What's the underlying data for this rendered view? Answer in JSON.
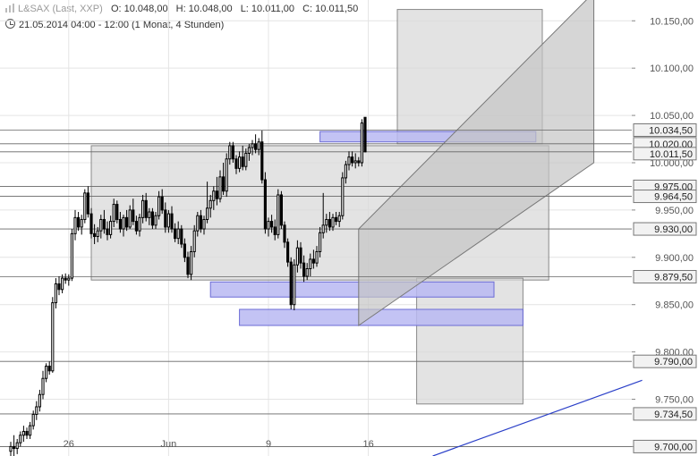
{
  "header": {
    "symbol": "L&SAX (Last, XXP)",
    "open": "O: 10.048,00",
    "high": "H: 10.048,00",
    "low": "L: 10.011,00",
    "close": "C: 10.011,50",
    "range": "21.05.2014 04:00 - 12:00 (1 Monat, 4 Stunden)"
  },
  "colors": {
    "grid": "#e4e4e4",
    "candle": "#000000",
    "zone_fill": "#d9d9d9",
    "channel_fill": "#c4c4c4",
    "blue_zone_fill": "#b8b8f2",
    "blue_zone_stroke": "#6b6bd6",
    "trendline": "#2a3fc8",
    "level_line": "#666666"
  },
  "chart_data": {
    "type": "candlestick",
    "interval": "4 Stunden",
    "y_axis": {
      "side": "right",
      "range": [
        9690,
        10172
      ],
      "ticks": [
        10150,
        10100,
        10050,
        10000,
        9950,
        9900,
        9850,
        9800,
        9750,
        9700
      ],
      "tick_labels": [
        "10.150,00",
        "10.100,00",
        "10.050,00",
        "10.000,00",
        "9.950,00",
        "9.900,00",
        "9.850,00",
        "9.800,00",
        "9.750,00",
        "9.700,00"
      ]
    },
    "x_axis": {
      "range": [
        0,
        155
      ],
      "ticks": [
        {
          "x": 18,
          "label": "26"
        },
        {
          "x": 49,
          "label": "Jun"
        },
        {
          "x": 80,
          "label": "9"
        },
        {
          "x": 111,
          "label": "16"
        }
      ]
    },
    "grid": true,
    "price_levels": [
      {
        "value": 10034.5,
        "label": "10.034,50"
      },
      {
        "value": 10020,
        "label": "10.020,00"
      },
      {
        "value": 10011.5,
        "label": "10.011,50"
      },
      {
        "value": 9975,
        "label": "9.975,00"
      },
      {
        "value": 9964.5,
        "label": "9.964,50"
      },
      {
        "value": 9930,
        "label": "9.930,00"
      },
      {
        "value": 9879.5,
        "label": "9.879,50"
      },
      {
        "value": 9790,
        "label": "9.790,00"
      },
      {
        "value": 9734.5,
        "label": "9.734,50"
      },
      {
        "value": 9700,
        "label": "9.700,00"
      }
    ],
    "zones": [
      {
        "x0": 25,
        "x1": 167,
        "y0": 9876,
        "y1": 10018,
        "kind": "range"
      },
      {
        "x0": 120,
        "x1": 165,
        "y0": 10020,
        "y1": 10162,
        "kind": "range"
      },
      {
        "x0": 126,
        "x1": 159,
        "y0": 9745,
        "y1": 9878,
        "kind": "range"
      },
      {
        "x0": 96,
        "x1": 163,
        "y0": 10022,
        "y1": 10033,
        "kind": "demand"
      },
      {
        "x0": 62,
        "x1": 150,
        "y0": 9858,
        "y1": 9874,
        "kind": "demand"
      },
      {
        "x0": 71,
        "x1": 159,
        "y0": 9828,
        "y1": 9845,
        "kind": "demand"
      }
    ],
    "channel": {
      "x0": 108,
      "x1": 181,
      "lower": [
        9828,
        10000
      ],
      "upper": [
        9930,
        10180
      ]
    },
    "trendline": {
      "x0": 131,
      "y0": 9690,
      "x1": 196,
      "y1": 9770
    },
    "candles": [
      {
        "o": 9695,
        "h": 9705,
        "l": 9690,
        "c": 9700
      },
      {
        "o": 9700,
        "h": 9712,
        "l": 9690,
        "c": 9698
      },
      {
        "o": 9698,
        "h": 9708,
        "l": 9692,
        "c": 9704
      },
      {
        "o": 9704,
        "h": 9716,
        "l": 9700,
        "c": 9712
      },
      {
        "o": 9712,
        "h": 9722,
        "l": 9705,
        "c": 9716
      },
      {
        "o": 9716,
        "h": 9720,
        "l": 9708,
        "c": 9712
      },
      {
        "o": 9712,
        "h": 9726,
        "l": 9708,
        "c": 9722
      },
      {
        "o": 9722,
        "h": 9738,
        "l": 9718,
        "c": 9734
      },
      {
        "o": 9734,
        "h": 9748,
        "l": 9728,
        "c": 9742
      },
      {
        "o": 9742,
        "h": 9760,
        "l": 9737,
        "c": 9755
      },
      {
        "o": 9755,
        "h": 9780,
        "l": 9750,
        "c": 9772
      },
      {
        "o": 9772,
        "h": 9788,
        "l": 9768,
        "c": 9785
      },
      {
        "o": 9785,
        "h": 9790,
        "l": 9776,
        "c": 9780
      },
      {
        "o": 9780,
        "h": 9858,
        "l": 9778,
        "c": 9852
      },
      {
        "o": 9852,
        "h": 9878,
        "l": 9846,
        "c": 9872
      },
      {
        "o": 9872,
        "h": 9880,
        "l": 9860,
        "c": 9866
      },
      {
        "o": 9866,
        "h": 9882,
        "l": 9862,
        "c": 9878
      },
      {
        "o": 9878,
        "h": 9883,
        "l": 9872,
        "c": 9876
      },
      {
        "o": 9876,
        "h": 9882,
        "l": 9870,
        "c": 9878
      },
      {
        "o": 9878,
        "h": 9930,
        "l": 9875,
        "c": 9925
      },
      {
        "o": 9925,
        "h": 9950,
        "l": 9918,
        "c": 9942
      },
      {
        "o": 9942,
        "h": 9948,
        "l": 9928,
        "c": 9932
      },
      {
        "o": 9932,
        "h": 9945,
        "l": 9924,
        "c": 9940
      },
      {
        "o": 9940,
        "h": 9972,
        "l": 9936,
        "c": 9968
      },
      {
        "o": 9968,
        "h": 9975,
        "l": 9942,
        "c": 9946
      },
      {
        "o": 9946,
        "h": 9952,
        "l": 9920,
        "c": 9925
      },
      {
        "o": 9925,
        "h": 9935,
        "l": 9914,
        "c": 9922
      },
      {
        "o": 9922,
        "h": 9932,
        "l": 9916,
        "c": 9928
      },
      {
        "o": 9928,
        "h": 9945,
        "l": 9920,
        "c": 9940
      },
      {
        "o": 9940,
        "h": 9950,
        "l": 9925,
        "c": 9930
      },
      {
        "o": 9930,
        "h": 9938,
        "l": 9918,
        "c": 9924
      },
      {
        "o": 9924,
        "h": 9944,
        "l": 9920,
        "c": 9938
      },
      {
        "o": 9938,
        "h": 9962,
        "l": 9932,
        "c": 9956
      },
      {
        "o": 9956,
        "h": 9960,
        "l": 9936,
        "c": 9940
      },
      {
        "o": 9940,
        "h": 9948,
        "l": 9926,
        "c": 9930
      },
      {
        "o": 9930,
        "h": 9945,
        "l": 9922,
        "c": 9942
      },
      {
        "o": 9942,
        "h": 9950,
        "l": 9928,
        "c": 9932
      },
      {
        "o": 9932,
        "h": 9955,
        "l": 9930,
        "c": 9950
      },
      {
        "o": 9950,
        "h": 9962,
        "l": 9934,
        "c": 9938
      },
      {
        "o": 9938,
        "h": 9944,
        "l": 9924,
        "c": 9928
      },
      {
        "o": 9928,
        "h": 9946,
        "l": 9922,
        "c": 9942
      },
      {
        "o": 9942,
        "h": 9966,
        "l": 9936,
        "c": 9960
      },
      {
        "o": 9960,
        "h": 9968,
        "l": 9938,
        "c": 9942
      },
      {
        "o": 9942,
        "h": 9952,
        "l": 9934,
        "c": 9948
      },
      {
        "o": 9948,
        "h": 9952,
        "l": 9930,
        "c": 9934
      },
      {
        "o": 9934,
        "h": 9948,
        "l": 9930,
        "c": 9944
      },
      {
        "o": 9944,
        "h": 9970,
        "l": 9940,
        "c": 9964
      },
      {
        "o": 9964,
        "h": 9972,
        "l": 9946,
        "c": 9950
      },
      {
        "o": 9950,
        "h": 9958,
        "l": 9926,
        "c": 9932
      },
      {
        "o": 9932,
        "h": 9950,
        "l": 9926,
        "c": 9946
      },
      {
        "o": 9946,
        "h": 9954,
        "l": 9926,
        "c": 9930
      },
      {
        "o": 9930,
        "h": 9936,
        "l": 9916,
        "c": 9920
      },
      {
        "o": 9920,
        "h": 9938,
        "l": 9914,
        "c": 9930
      },
      {
        "o": 9930,
        "h": 9934,
        "l": 9910,
        "c": 9914
      },
      {
        "o": 9914,
        "h": 9920,
        "l": 9895,
        "c": 9900
      },
      {
        "o": 9900,
        "h": 9906,
        "l": 9878,
        "c": 9882
      },
      {
        "o": 9882,
        "h": 9912,
        "l": 9876,
        "c": 9906
      },
      {
        "o": 9906,
        "h": 9934,
        "l": 9900,
        "c": 9928
      },
      {
        "o": 9928,
        "h": 9948,
        "l": 9922,
        "c": 9944
      },
      {
        "o": 9944,
        "h": 9950,
        "l": 9926,
        "c": 9930
      },
      {
        "o": 9930,
        "h": 9944,
        "l": 9924,
        "c": 9940
      },
      {
        "o": 9940,
        "h": 9980,
        "l": 9936,
        "c": 9952
      },
      {
        "o": 9952,
        "h": 9966,
        "l": 9942,
        "c": 9960
      },
      {
        "o": 9960,
        "h": 9975,
        "l": 9950,
        "c": 9970
      },
      {
        "o": 9970,
        "h": 9985,
        "l": 9955,
        "c": 9962
      },
      {
        "o": 9962,
        "h": 9992,
        "l": 9958,
        "c": 9985
      },
      {
        "o": 9985,
        "h": 10000,
        "l": 9966,
        "c": 9970
      },
      {
        "o": 9970,
        "h": 10010,
        "l": 9964,
        "c": 10004
      },
      {
        "o": 10004,
        "h": 10022,
        "l": 9998,
        "c": 10018
      },
      {
        "o": 10018,
        "h": 10022,
        "l": 10000,
        "c": 10004
      },
      {
        "o": 10004,
        "h": 10008,
        "l": 9988,
        "c": 9994
      },
      {
        "o": 9994,
        "h": 10012,
        "l": 9990,
        "c": 10006
      },
      {
        "o": 10006,
        "h": 10018,
        "l": 9992,
        "c": 9996
      },
      {
        "o": 9996,
        "h": 10015,
        "l": 9992,
        "c": 10010
      },
      {
        "o": 10010,
        "h": 10020,
        "l": 10002,
        "c": 10016
      },
      {
        "o": 10016,
        "h": 10024,
        "l": 10008,
        "c": 10020
      },
      {
        "o": 10020,
        "h": 10030,
        "l": 10010,
        "c": 10014
      },
      {
        "o": 10014,
        "h": 10026,
        "l": 10008,
        "c": 10022
      },
      {
        "o": 10022,
        "h": 10034,
        "l": 9978,
        "c": 9982
      },
      {
        "o": 9982,
        "h": 9990,
        "l": 9925,
        "c": 9930
      },
      {
        "o": 9930,
        "h": 9942,
        "l": 9922,
        "c": 9938
      },
      {
        "o": 9938,
        "h": 9945,
        "l": 9926,
        "c": 9932
      },
      {
        "o": 9932,
        "h": 9940,
        "l": 9918,
        "c": 9924
      },
      {
        "o": 9924,
        "h": 9972,
        "l": 9920,
        "c": 9966
      },
      {
        "o": 9966,
        "h": 9970,
        "l": 9930,
        "c": 9934
      },
      {
        "o": 9934,
        "h": 9938,
        "l": 9910,
        "c": 9916
      },
      {
        "o": 9916,
        "h": 9920,
        "l": 9890,
        "c": 9895
      },
      {
        "o": 9895,
        "h": 9900,
        "l": 9845,
        "c": 9850
      },
      {
        "o": 9850,
        "h": 9898,
        "l": 9844,
        "c": 9892
      },
      {
        "o": 9892,
        "h": 9918,
        "l": 9884,
        "c": 9910
      },
      {
        "o": 9910,
        "h": 9916,
        "l": 9888,
        "c": 9894
      },
      {
        "o": 9894,
        "h": 9902,
        "l": 9874,
        "c": 9880
      },
      {
        "o": 9880,
        "h": 9894,
        "l": 9876,
        "c": 9888
      },
      {
        "o": 9888,
        "h": 9904,
        "l": 9880,
        "c": 9898
      },
      {
        "o": 9898,
        "h": 9908,
        "l": 9888,
        "c": 9894
      },
      {
        "o": 9894,
        "h": 9912,
        "l": 9890,
        "c": 9906
      },
      {
        "o": 9906,
        "h": 9932,
        "l": 9900,
        "c": 9926
      },
      {
        "o": 9926,
        "h": 9968,
        "l": 9920,
        "c": 9934
      },
      {
        "o": 9934,
        "h": 9946,
        "l": 9926,
        "c": 9940
      },
      {
        "o": 9940,
        "h": 9948,
        "l": 9928,
        "c": 9932
      },
      {
        "o": 9932,
        "h": 9946,
        "l": 9928,
        "c": 9942
      },
      {
        "o": 9942,
        "h": 9948,
        "l": 9934,
        "c": 9938
      },
      {
        "o": 9938,
        "h": 9948,
        "l": 9932,
        "c": 9944
      },
      {
        "o": 9944,
        "h": 9990,
        "l": 9940,
        "c": 9984
      },
      {
        "o": 9984,
        "h": 10002,
        "l": 9978,
        "c": 9998
      },
      {
        "o": 9998,
        "h": 10012,
        "l": 9992,
        "c": 10006
      },
      {
        "o": 10006,
        "h": 10012,
        "l": 9996,
        "c": 10000
      },
      {
        "o": 10000,
        "h": 10010,
        "l": 9994,
        "c": 10002
      },
      {
        "o": 10002,
        "h": 10006,
        "l": 9996,
        "c": 10000
      },
      {
        "o": 10000,
        "h": 10046,
        "l": 9996,
        "c": 10042
      },
      {
        "o": 10048,
        "h": 10048,
        "l": 10011,
        "c": 10011.5
      }
    ]
  }
}
